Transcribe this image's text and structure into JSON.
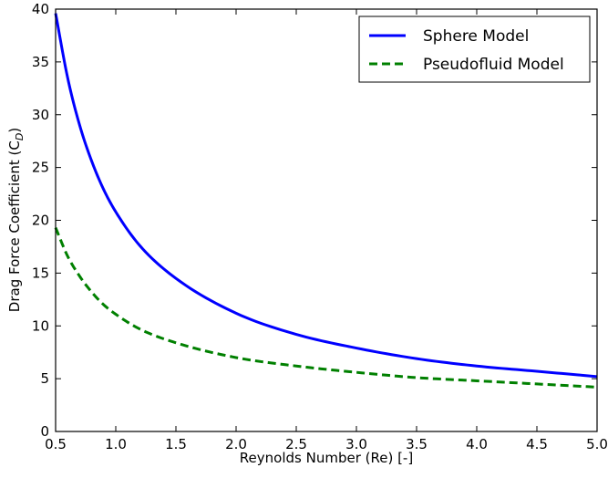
{
  "chart_data": {
    "type": "line",
    "title": "",
    "xlabel": "Reynolds Number (Re) [-]",
    "ylabel": "Drag Force Coefficient (C",
    "ylabel_sub": "D",
    "ylabel_close": ")",
    "xlim": [
      0.5,
      5.0
    ],
    "ylim": [
      0,
      40
    ],
    "xticks": [
      "0.5",
      "1.0",
      "1.5",
      "2.0",
      "2.5",
      "3.0",
      "3.5",
      "4.0",
      "4.5",
      "5.0"
    ],
    "yticks": [
      "0",
      "5",
      "10",
      "15",
      "20",
      "25",
      "30",
      "35",
      "40"
    ],
    "grid": false,
    "legend_position": "top-right",
    "series": [
      {
        "name": "Sphere Model",
        "color": "#0000ff",
        "style": "solid",
        "x": [
          0.5,
          0.6,
          0.7,
          0.8,
          0.9,
          1.0,
          1.2,
          1.5,
          2.0,
          2.5,
          3.0,
          3.5,
          4.0,
          4.5,
          5.0
        ],
        "y": [
          39.6,
          33.5,
          29.0,
          25.6,
          22.9,
          20.8,
          17.6,
          14.5,
          11.2,
          9.2,
          7.9,
          6.9,
          6.2,
          5.7,
          5.2
        ]
      },
      {
        "name": "Pseudofluid Model",
        "color": "#008000",
        "style": "dashed",
        "x": [
          0.5,
          0.6,
          0.7,
          0.8,
          0.9,
          1.0,
          1.2,
          1.5,
          2.0,
          2.5,
          3.0,
          3.5,
          4.0,
          4.5,
          5.0
        ],
        "y": [
          19.3,
          16.6,
          14.7,
          13.2,
          12.0,
          11.1,
          9.7,
          8.4,
          7.0,
          6.2,
          5.6,
          5.1,
          4.8,
          4.5,
          4.2
        ]
      }
    ]
  }
}
